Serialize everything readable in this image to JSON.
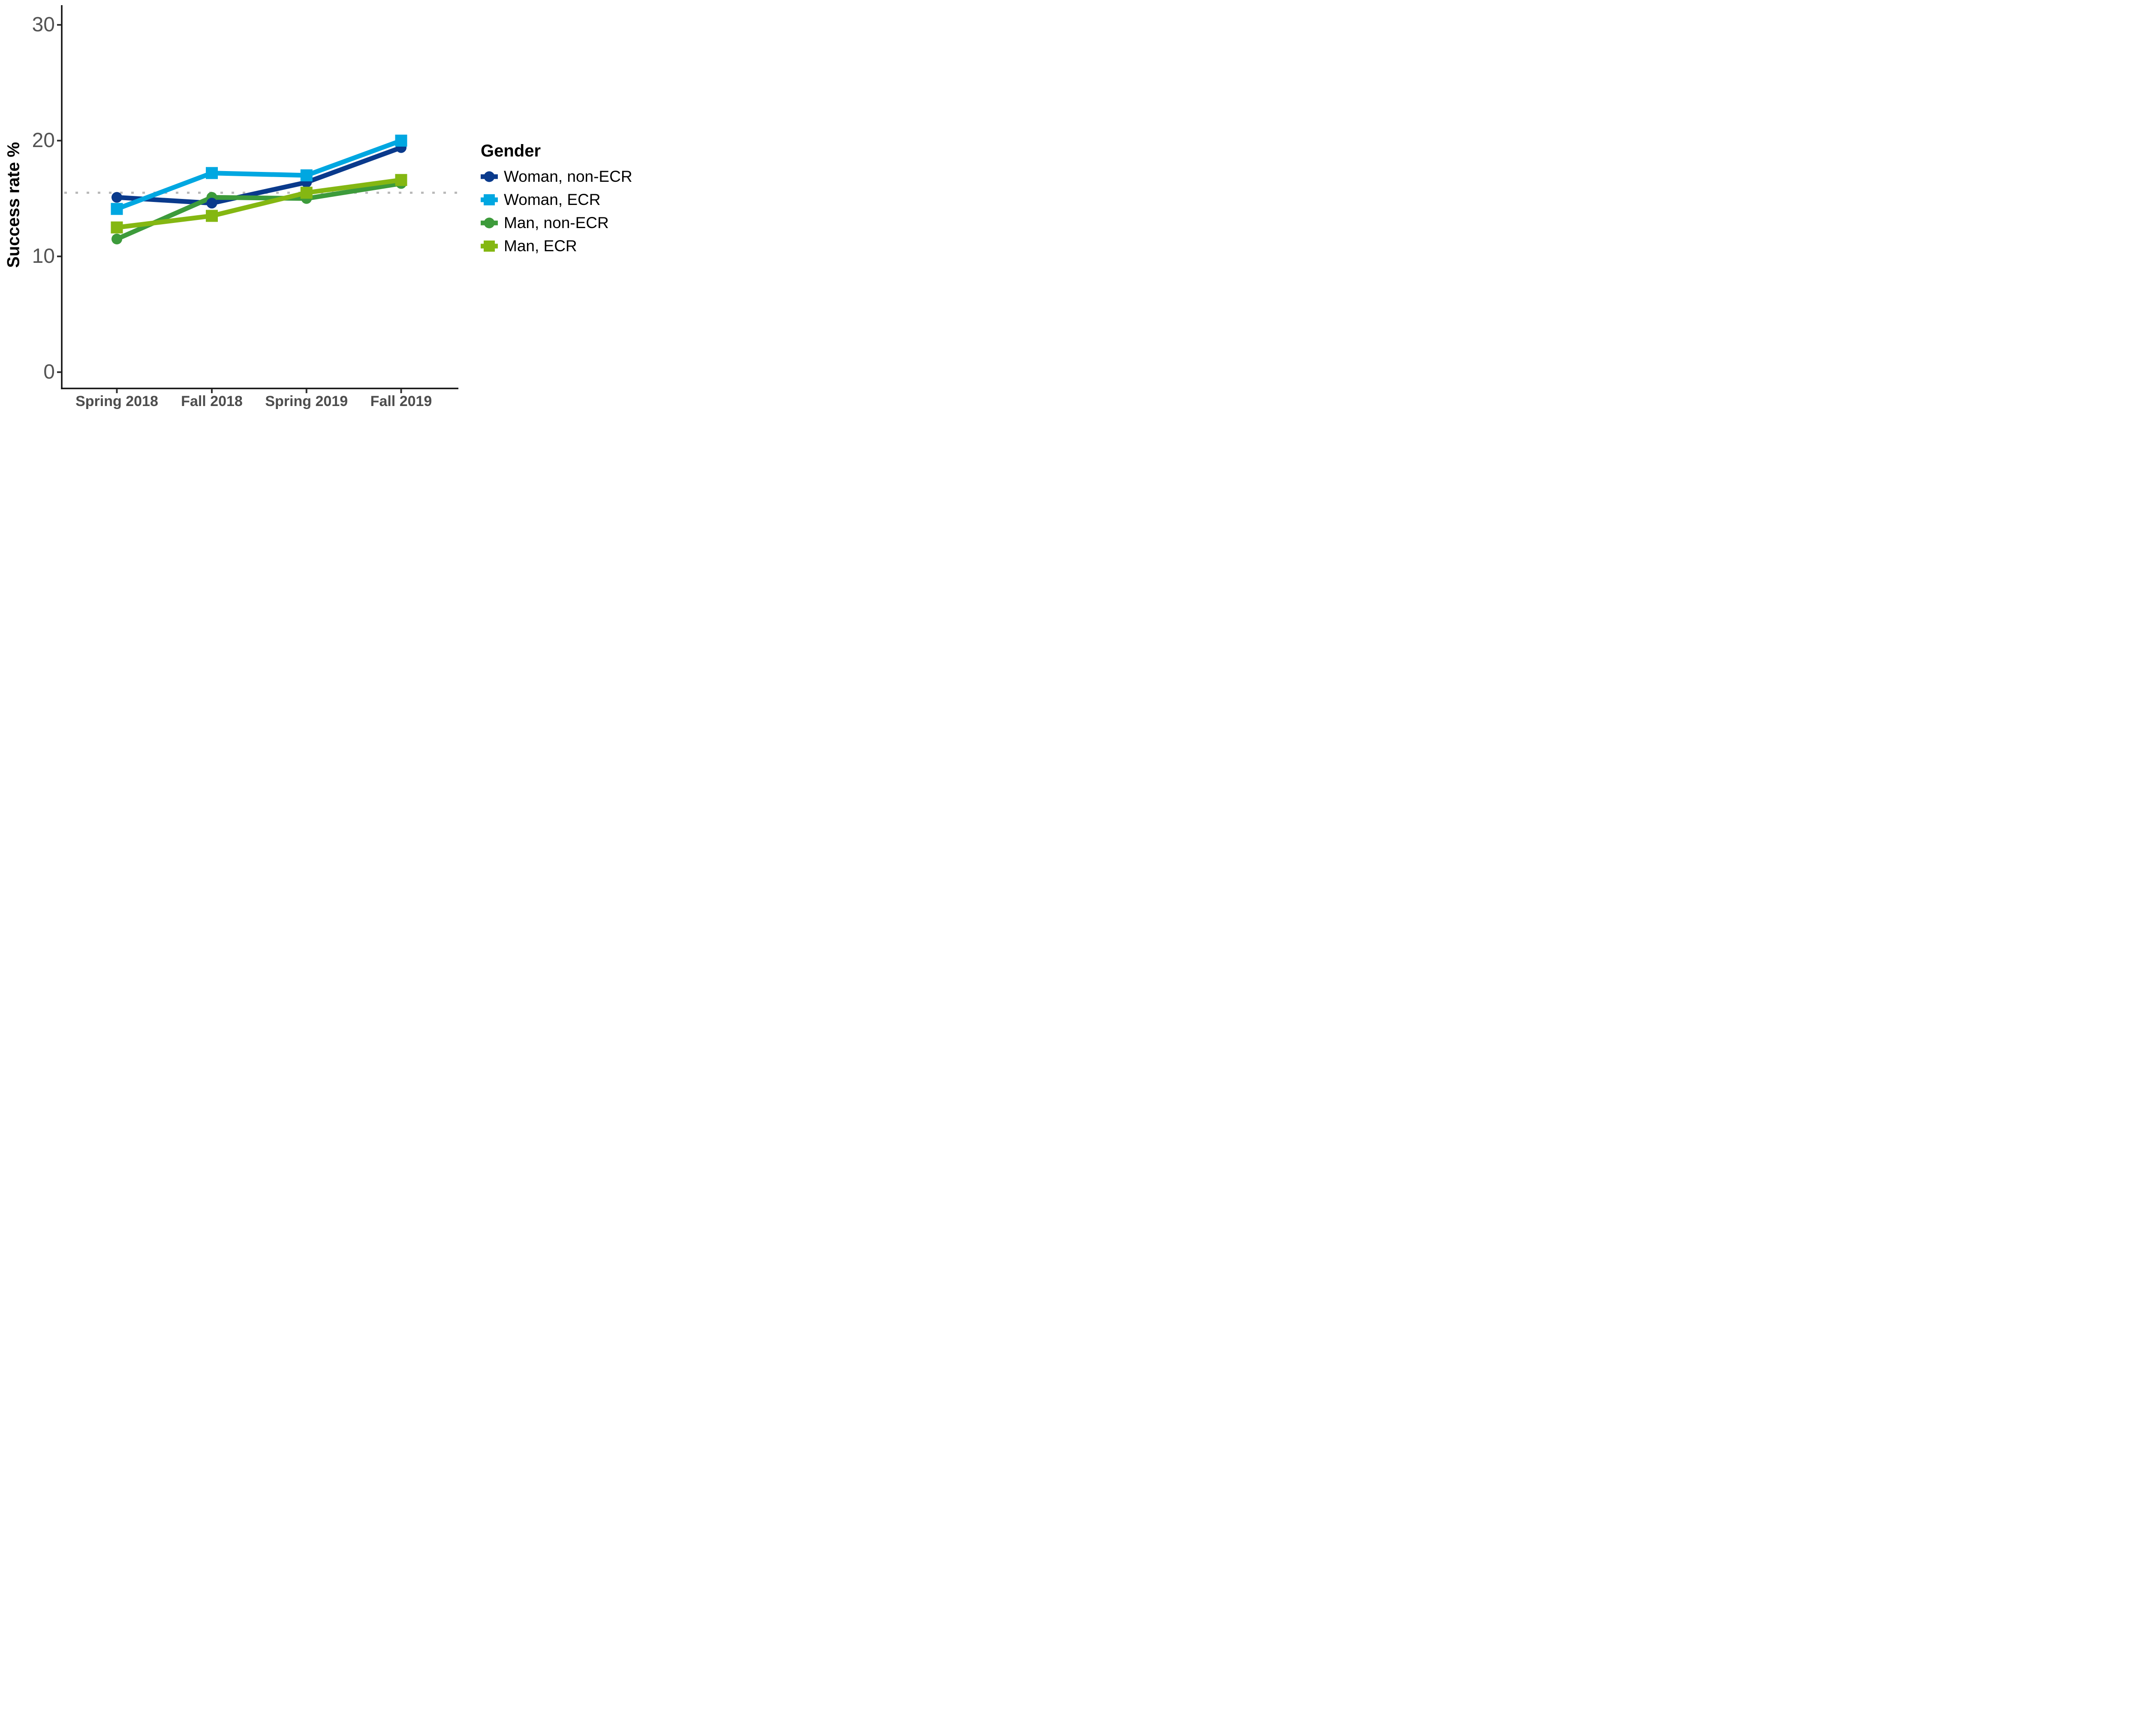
{
  "chart_data": {
    "type": "line",
    "title": "",
    "x_categories": [
      "Spring 2018",
      "Fall 2018",
      "Spring 2019",
      "Fall 2019"
    ],
    "ylabel": "Success rate %",
    "yticks": [
      0,
      10,
      20,
      30
    ],
    "ytick_labels": [
      "0",
      "10",
      "20",
      "30"
    ],
    "ylim": [
      -1.4,
      31.7
    ],
    "grid": false,
    "legend_title": "Gender",
    "legend_position": "right",
    "reference_line": {
      "value": 15.5,
      "style": "dotted",
      "color": "#b9b9b9"
    },
    "series": [
      {
        "name": "Woman, non-ECR",
        "marker": "circle",
        "color": "#0a3a8c",
        "values": [
          15.1,
          14.6,
          16.4,
          19.4
        ]
      },
      {
        "name": "Woman, ECR",
        "marker": "square",
        "color": "#00a7e1",
        "values": [
          14.1,
          17.2,
          17.0,
          20.0
        ]
      },
      {
        "name": "Man, non-ECR",
        "marker": "circle",
        "color": "#3d9b3b",
        "values": [
          11.5,
          15.1,
          15.0,
          16.3
        ]
      },
      {
        "name": "Man, ECR",
        "marker": "square",
        "color": "#84b712",
        "values": [
          12.5,
          13.5,
          15.5,
          16.6
        ]
      }
    ]
  }
}
